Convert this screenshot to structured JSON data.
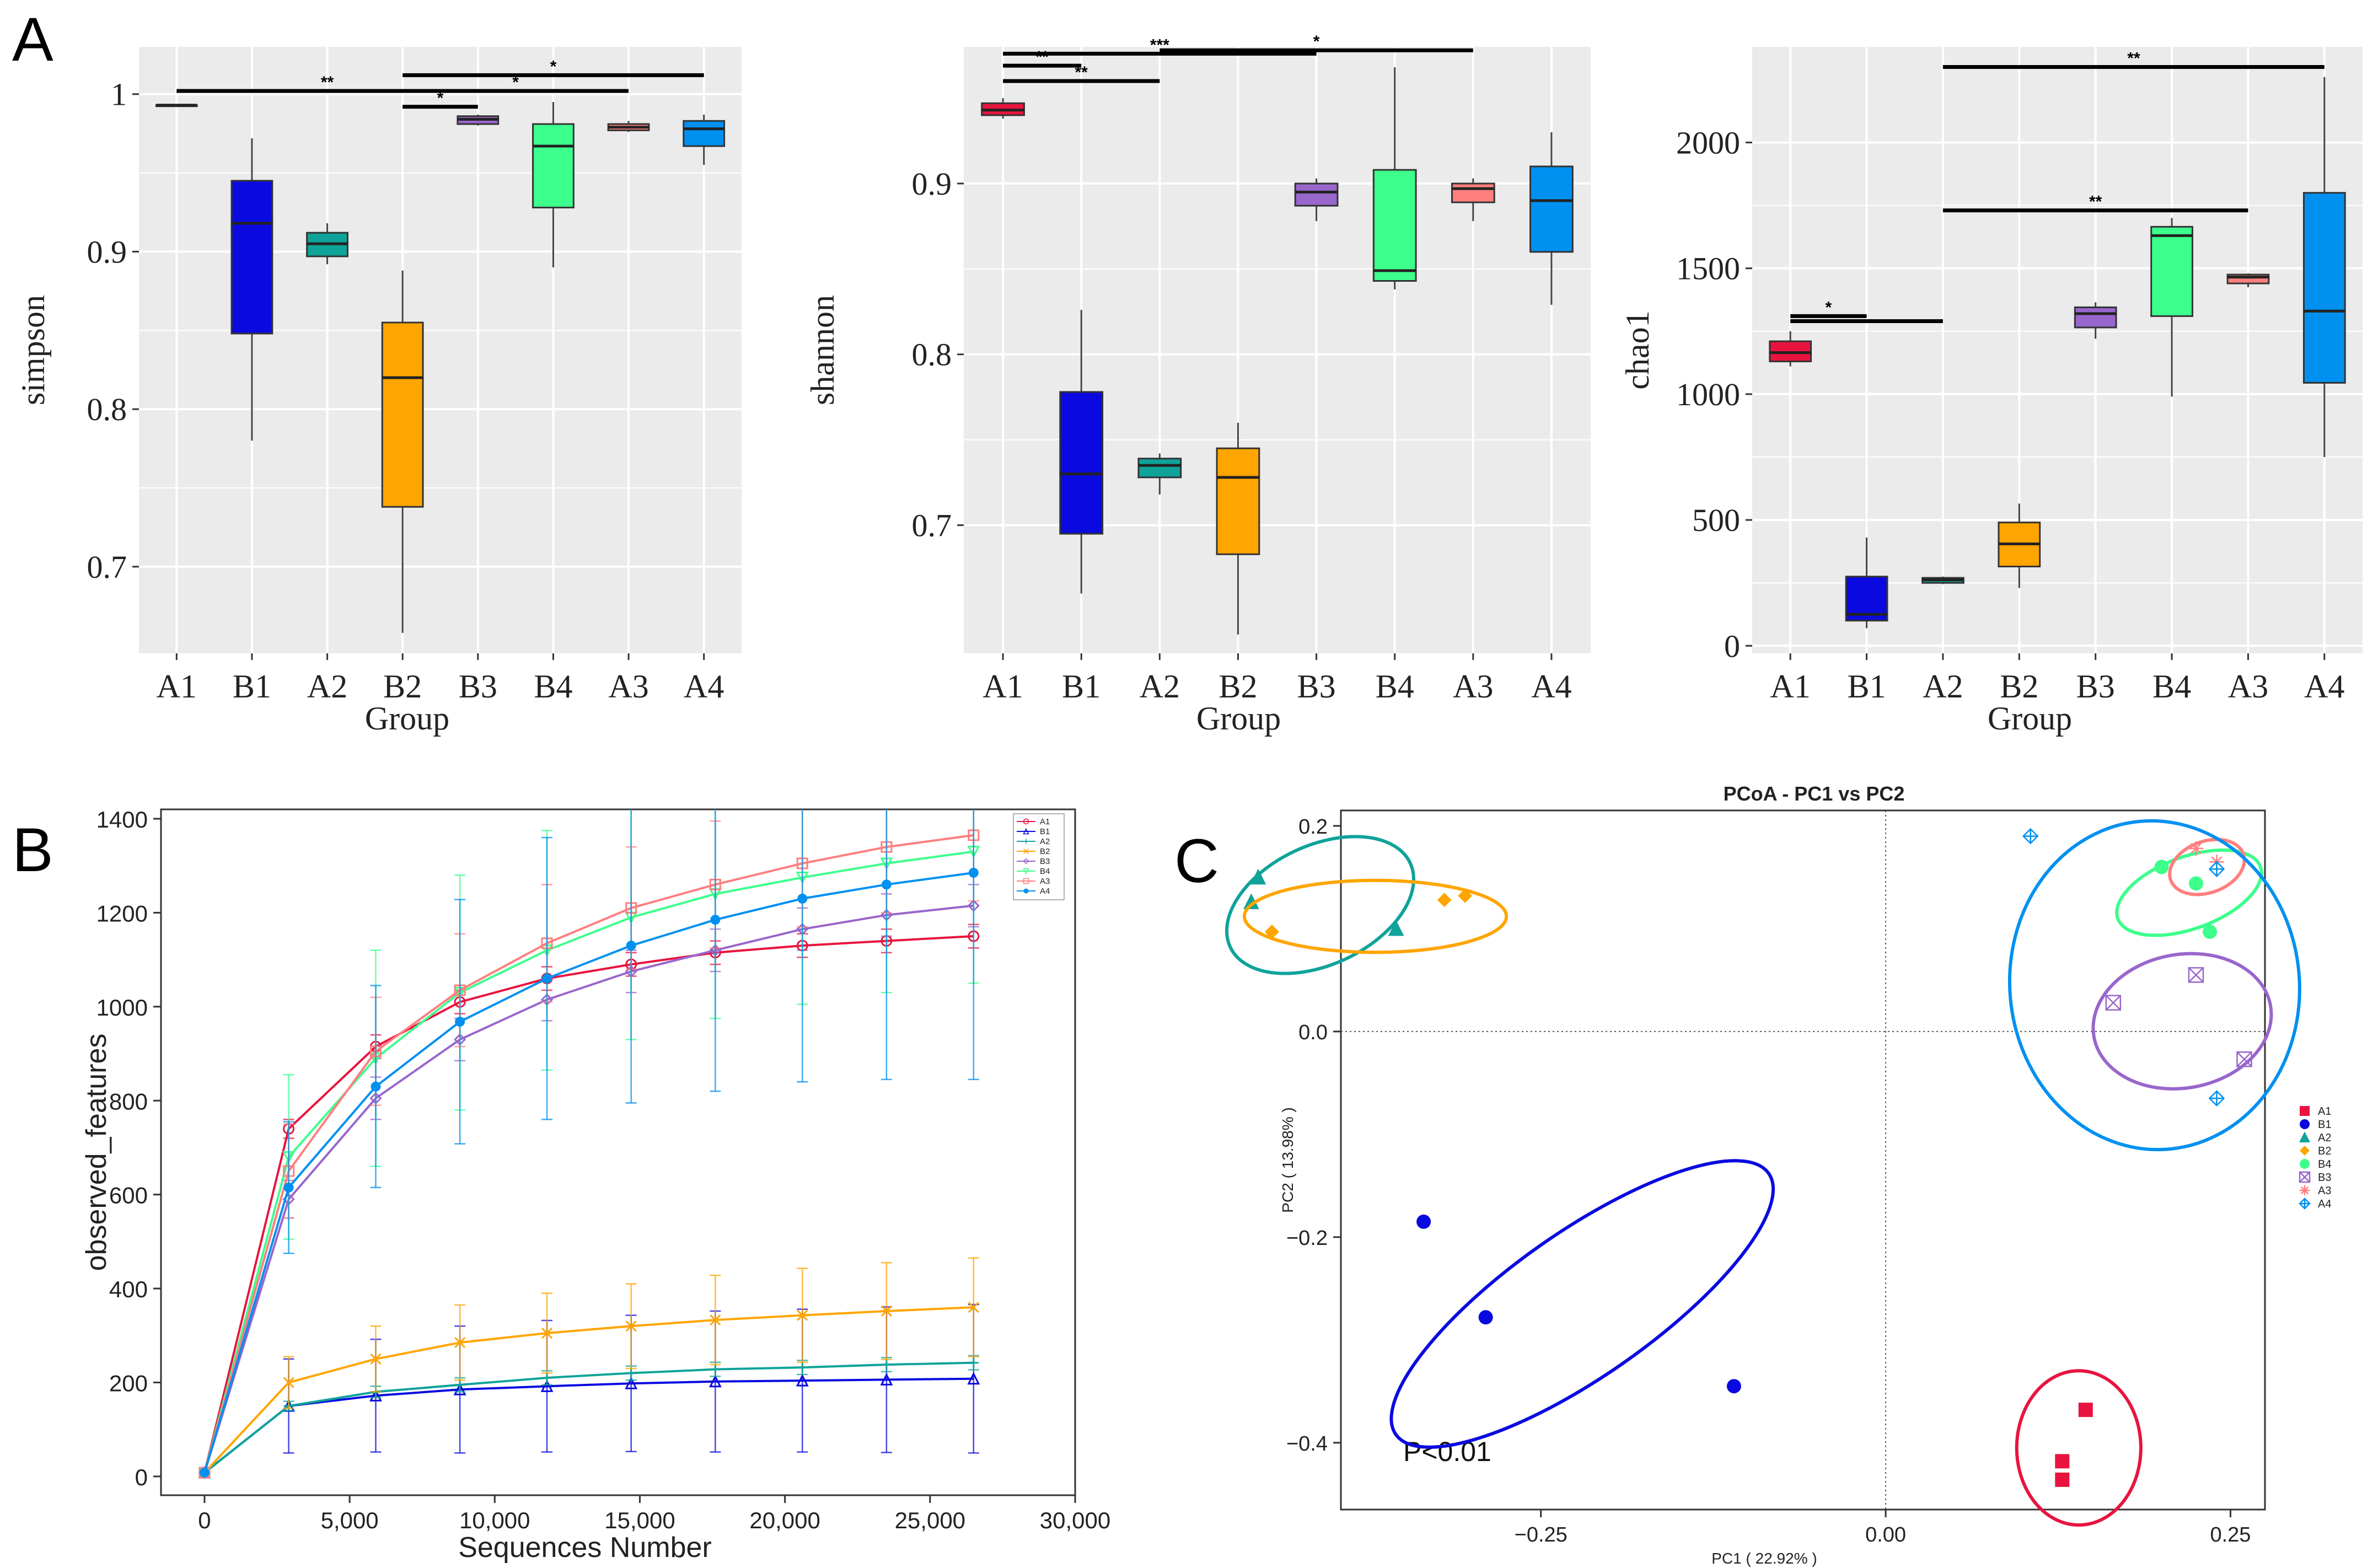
{
  "figure": {
    "panel_labels": [
      "A",
      "B",
      "C"
    ]
  },
  "colors": {
    "A1": "#e8143f",
    "B1": "#0a0ae0",
    "A2": "#0fa39a",
    "B2": "#ffa500",
    "B3": "#9966cc",
    "B4": "#3dff8c",
    "A3": "#ff7f7f",
    "A4": "#0090f0",
    "panel_bg": "#ebebeb",
    "sig_bar": "#000000"
  },
  "chart_data": [
    {
      "id": "simpson",
      "type": "boxplot",
      "title": "",
      "xlabel": "Group",
      "ylabel": "simpson",
      "categories": [
        "A1",
        "B1",
        "A2",
        "B2",
        "B3",
        "B4",
        "A3",
        "A4"
      ],
      "ylim": [
        0.645,
        1.03
      ],
      "yticks": [
        0.7,
        0.8,
        0.9,
        1.0
      ],
      "ytick_labels": [
        "0.7",
        "0.8",
        "0.9",
        "1"
      ],
      "boxes": [
        {
          "group": "A1",
          "min": 0.993,
          "q1": 0.993,
          "median": 0.993,
          "q3": 0.993,
          "max": 0.993
        },
        {
          "group": "B1",
          "min": 0.78,
          "q1": 0.848,
          "median": 0.918,
          "q3": 0.945,
          "max": 0.972
        },
        {
          "group": "A2",
          "min": 0.892,
          "q1": 0.897,
          "median": 0.905,
          "q3": 0.912,
          "max": 0.918
        },
        {
          "group": "B2",
          "min": 0.658,
          "q1": 0.738,
          "median": 0.82,
          "q3": 0.855,
          "max": 0.888
        },
        {
          "group": "B3",
          "min": 0.98,
          "q1": 0.981,
          "median": 0.984,
          "q3": 0.986,
          "max": 0.987
        },
        {
          "group": "B4",
          "min": 0.89,
          "q1": 0.928,
          "median": 0.967,
          "q3": 0.981,
          "max": 0.995
        },
        {
          "group": "A3",
          "min": 0.976,
          "q1": 0.977,
          "median": 0.979,
          "q3": 0.981,
          "max": 0.983
        },
        {
          "group": "A4",
          "min": 0.955,
          "q1": 0.967,
          "median": 0.978,
          "q3": 0.983,
          "max": 0.987
        }
      ],
      "significance": [
        {
          "from": "A1",
          "to": "B3",
          "y": 1.002,
          "label": "**"
        },
        {
          "from": "B2",
          "to": "A4",
          "y": 1.012,
          "label": "*"
        },
        {
          "from": "B2",
          "to": "A3",
          "y": 1.002,
          "label": "*"
        },
        {
          "from": "B2",
          "to": "B3",
          "y": 0.992,
          "label": "*"
        }
      ]
    },
    {
      "id": "shannon",
      "type": "boxplot",
      "title": "",
      "xlabel": "Group",
      "ylabel": "shannon",
      "categories": [
        "A1",
        "B1",
        "A2",
        "B2",
        "B3",
        "B4",
        "A3",
        "A4"
      ],
      "ylim": [
        0.625,
        0.98
      ],
      "yticks": [
        0.7,
        0.8,
        0.9
      ],
      "ytick_labels": [
        "0.7",
        "0.8",
        "0.9"
      ],
      "boxes": [
        {
          "group": "A1",
          "min": 0.938,
          "q1": 0.94,
          "median": 0.943,
          "q3": 0.947,
          "max": 0.95
        },
        {
          "group": "B1",
          "min": 0.66,
          "q1": 0.695,
          "median": 0.73,
          "q3": 0.778,
          "max": 0.826
        },
        {
          "group": "A2",
          "min": 0.718,
          "q1": 0.728,
          "median": 0.735,
          "q3": 0.739,
          "max": 0.742
        },
        {
          "group": "B2",
          "min": 0.636,
          "q1": 0.683,
          "median": 0.728,
          "q3": 0.745,
          "max": 0.76
        },
        {
          "group": "B3",
          "min": 0.878,
          "q1": 0.887,
          "median": 0.895,
          "q3": 0.9,
          "max": 0.903
        },
        {
          "group": "B4",
          "min": 0.838,
          "q1": 0.843,
          "median": 0.849,
          "q3": 0.908,
          "max": 0.968
        },
        {
          "group": "A3",
          "min": 0.878,
          "q1": 0.889,
          "median": 0.897,
          "q3": 0.9,
          "max": 0.903
        },
        {
          "group": "A4",
          "min": 0.829,
          "q1": 0.86,
          "median": 0.89,
          "q3": 0.91,
          "max": 0.93
        }
      ],
      "significance": [
        {
          "from": "A1",
          "to": "B3",
          "y": 0.976,
          "label": "***"
        },
        {
          "from": "A2",
          "to": "A3",
          "y": 0.978,
          "label": "*"
        },
        {
          "from": "A1",
          "to": "B1",
          "y": 0.969,
          "label": "**"
        },
        {
          "from": "A1",
          "to": "A2",
          "y": 0.96,
          "label": "**"
        }
      ]
    },
    {
      "id": "chao1",
      "type": "boxplot",
      "title": "",
      "xlabel": "Group",
      "ylabel": "chao1",
      "categories": [
        "A1",
        "B1",
        "A2",
        "B2",
        "B3",
        "B4",
        "A3",
        "A4"
      ],
      "ylim": [
        -30,
        2380
      ],
      "yticks": [
        0,
        500,
        1000,
        1500,
        2000
      ],
      "ytick_labels": [
        "0",
        "500",
        "1000",
        "1500",
        "2000"
      ],
      "boxes": [
        {
          "group": "A1",
          "min": 1110,
          "q1": 1130,
          "median": 1165,
          "q3": 1210,
          "max": 1250
        },
        {
          "group": "B1",
          "min": 70,
          "q1": 100,
          "median": 125,
          "q3": 275,
          "max": 430
        },
        {
          "group": "A2",
          "min": 245,
          "q1": 250,
          "median": 262,
          "q3": 270,
          "max": 275
        },
        {
          "group": "B2",
          "min": 230,
          "q1": 315,
          "median": 405,
          "q3": 490,
          "max": 565
        },
        {
          "group": "B3",
          "min": 1220,
          "q1": 1265,
          "median": 1320,
          "q3": 1345,
          "max": 1365
        },
        {
          "group": "B4",
          "min": 990,
          "q1": 1310,
          "median": 1630,
          "q3": 1665,
          "max": 1700
        },
        {
          "group": "A3",
          "min": 1425,
          "q1": 1440,
          "median": 1465,
          "q3": 1475,
          "max": 1480
        },
        {
          "group": "A4",
          "min": 750,
          "q1": 1045,
          "median": 1330,
          "q3": 1800,
          "max": 2260
        }
      ],
      "significance": [
        {
          "from": "A2",
          "to": "A4",
          "y": 2300,
          "label": "**"
        },
        {
          "from": "A2",
          "to": "A3",
          "y": 1730,
          "label": "**"
        },
        {
          "from": "A1",
          "to": "B1",
          "y": 1310,
          "label": "*"
        },
        {
          "from": "A1",
          "to": "A2",
          "y": 1290,
          "label": ""
        }
      ]
    },
    {
      "id": "rarefaction",
      "type": "line",
      "title": "",
      "xlabel": "Sequences Number",
      "ylabel": "observed_features",
      "xlim": [
        -1500,
        30000
      ],
      "ylim": [
        -40,
        1420
      ],
      "xticks": [
        0,
        5000,
        10000,
        15000,
        20000,
        25000,
        30000
      ],
      "xtick_labels": [
        "0",
        "5,000",
        "10,000",
        "15,000",
        "20,000",
        "25,000",
        "30,000"
      ],
      "yticks": [
        0,
        200,
        400,
        600,
        800,
        1000,
        1200,
        1400
      ],
      "ytick_labels": [
        "0",
        "200",
        "400",
        "600",
        "800",
        "1000",
        "1200",
        "1400"
      ],
      "x": [
        0,
        2900,
        5900,
        8800,
        11800,
        14700,
        17600,
        20600,
        23500,
        26500
      ],
      "series": [
        {
          "name": "A1",
          "marker": "circle-open",
          "values": [
            8,
            740,
            915,
            1010,
            1060,
            1090,
            1115,
            1130,
            1140,
            1150
          ],
          "err": [
            0,
            20,
            25,
            25,
            25,
            25,
            25,
            25,
            25,
            25
          ]
        },
        {
          "name": "B1",
          "marker": "triangle-open",
          "values": [
            8,
            150,
            172,
            185,
            192,
            198,
            202,
            204,
            206,
            208
          ],
          "err": [
            0,
            100,
            120,
            135,
            140,
            145,
            150,
            152,
            155,
            158
          ]
        },
        {
          "name": "A2",
          "marker": "plus",
          "values": [
            8,
            150,
            180,
            195,
            210,
            220,
            228,
            232,
            238,
            242
          ],
          "err": [
            0,
            10,
            12,
            15,
            15,
            15,
            15,
            15,
            15,
            15
          ]
        },
        {
          "name": "B2",
          "marker": "x",
          "values": [
            8,
            200,
            250,
            285,
            305,
            320,
            333,
            343,
            352,
            360
          ],
          "err": [
            0,
            55,
            70,
            80,
            85,
            90,
            95,
            100,
            103,
            105
          ]
        },
        {
          "name": "B3",
          "marker": "diamond-open",
          "values": [
            8,
            590,
            805,
            930,
            1015,
            1075,
            1120,
            1165,
            1195,
            1215
          ],
          "err": [
            0,
            40,
            45,
            45,
            45,
            45,
            45,
            45,
            45,
            45
          ]
        },
        {
          "name": "B4",
          "marker": "triangle-down-open",
          "values": [
            8,
            680,
            890,
            1030,
            1120,
            1190,
            1240,
            1275,
            1305,
            1330
          ],
          "err": [
            0,
            175,
            230,
            250,
            255,
            260,
            265,
            270,
            275,
            280
          ]
        },
        {
          "name": "A3",
          "marker": "square-open",
          "values": [
            8,
            650,
            905,
            1035,
            1135,
            1210,
            1260,
            1305,
            1340,
            1365
          ],
          "err": [
            0,
            100,
            115,
            120,
            125,
            130,
            135,
            135,
            140,
            140
          ]
        },
        {
          "name": "A4",
          "marker": "circle-filled",
          "values": [
            8,
            615,
            830,
            968,
            1060,
            1130,
            1185,
            1230,
            1260,
            1285
          ],
          "err": [
            0,
            140,
            215,
            260,
            300,
            335,
            365,
            390,
            415,
            440
          ]
        }
      ],
      "legend": [
        "A1",
        "B1",
        "A2",
        "B2",
        "B3",
        "B4",
        "A3",
        "A4"
      ],
      "legend_position": "top-right"
    },
    {
      "id": "pcoa",
      "type": "scatter",
      "title": "PCoA - PC1 vs PC2",
      "xlabel": "PC1 ( 22.92% )",
      "ylabel": "PC2 ( 13.98% )",
      "xlim": [
        -0.395,
        0.275
      ],
      "ylim": [
        -0.465,
        0.215
      ],
      "xticks": [
        -0.25,
        0.0,
        0.25
      ],
      "xtick_labels": [
        "−0.25",
        "0.00",
        "0.25"
      ],
      "yticks": [
        -0.4,
        -0.2,
        0.0,
        0.2
      ],
      "ytick_labels": [
        "−0.4",
        "−0.2",
        "0.0",
        "0.2"
      ],
      "annotation": "P<0.01",
      "legend": [
        "A1",
        "B1",
        "A2",
        "B2",
        "B4",
        "B3",
        "A3",
        "A4"
      ],
      "legend_position": "right",
      "groups": [
        {
          "name": "A1",
          "marker": "square-filled",
          "points": [
            [
              0.145,
              -0.368
            ],
            [
              0.128,
              -0.418
            ],
            [
              0.128,
              -0.436
            ]
          ],
          "ellipse": {
            "cx": 0.14,
            "cy": -0.405,
            "rx": 0.045,
            "ry": 0.075,
            "angle_deg": 0
          }
        },
        {
          "name": "B1",
          "marker": "circle-filled",
          "points": [
            [
              -0.335,
              -0.185
            ],
            [
              -0.29,
              -0.278
            ],
            [
              -0.11,
              -0.345
            ]
          ],
          "ellipse": {
            "cx": -0.22,
            "cy": -0.265,
            "rx": 0.165,
            "ry": 0.07,
            "angle_deg": -35
          }
        },
        {
          "name": "A2",
          "marker": "triangle-filled",
          "points": [
            [
              -0.455,
              0.15
            ],
            [
              -0.46,
              0.126
            ],
            [
              -0.355,
              0.1
            ]
          ],
          "ellipse": {
            "cx": -0.41,
            "cy": 0.123,
            "rx": 0.072,
            "ry": 0.058,
            "angle_deg": -25
          }
        },
        {
          "name": "B2",
          "marker": "diamond-filled",
          "points": [
            [
              -0.445,
              0.097
            ],
            [
              -0.32,
              0.128
            ],
            [
              -0.305,
              0.132
            ]
          ],
          "ellipse": {
            "cx": -0.37,
            "cy": 0.112,
            "rx": 0.095,
            "ry": 0.035,
            "angle_deg": 0
          }
        },
        {
          "name": "B4",
          "marker": "circle-filled",
          "points": [
            [
              0.2,
              0.16
            ],
            [
              0.225,
              0.144
            ],
            [
              0.235,
              0.097
            ]
          ],
          "ellipse": {
            "cx": 0.22,
            "cy": 0.135,
            "rx": 0.055,
            "ry": 0.035,
            "angle_deg": -20
          }
        },
        {
          "name": "B3",
          "marker": "square-crossed-open",
          "points": [
            [
              0.165,
              0.028
            ],
            [
              0.225,
              0.055
            ],
            [
              0.26,
              -0.027
            ]
          ],
          "ellipse": {
            "cx": 0.215,
            "cy": 0.01,
            "rx": 0.065,
            "ry": 0.065,
            "angle_deg": -10
          }
        },
        {
          "name": "A3",
          "marker": "asterisk",
          "points": [
            [
              0.225,
              0.178
            ],
            [
              0.24,
              0.165
            ]
          ],
          "ellipse": {
            "cx": 0.233,
            "cy": 0.16,
            "rx": 0.028,
            "ry": 0.025,
            "angle_deg": -20
          }
        },
        {
          "name": "A4",
          "marker": "diamond-plus-open",
          "points": [
            [
              0.105,
              0.19
            ],
            [
              0.24,
              0.158
            ],
            [
              0.24,
              -0.065
            ]
          ],
          "ellipse": {
            "cx": 0.195,
            "cy": 0.045,
            "rx": 0.105,
            "ry": 0.16,
            "angle_deg": -5
          }
        }
      ]
    }
  ]
}
